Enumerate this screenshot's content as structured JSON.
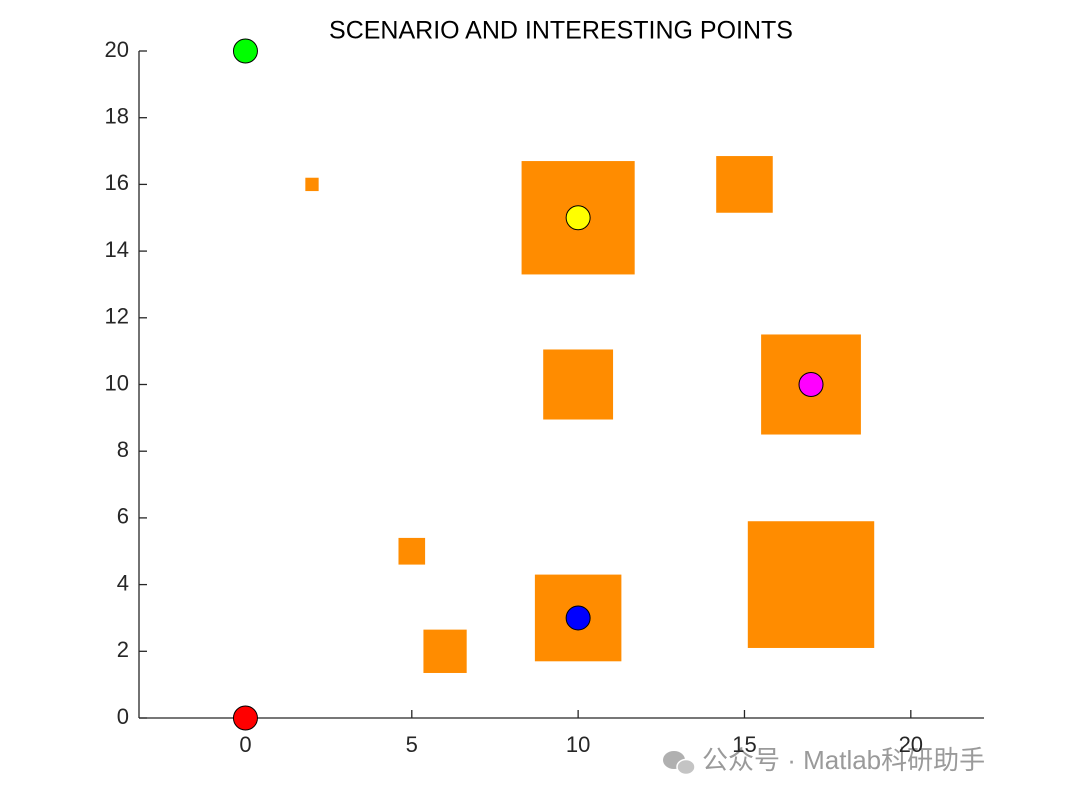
{
  "chart_data": {
    "type": "scatter",
    "title": "SCENARIO AND INTERESTING POINTS",
    "xlim": [
      -3.2,
      22.2
    ],
    "ylim": [
      0,
      20
    ],
    "xticks": [
      0,
      5,
      10,
      15,
      20
    ],
    "yticks": [
      0,
      2,
      4,
      6,
      8,
      10,
      12,
      14,
      16,
      18,
      20
    ],
    "grid": false,
    "obstacles": {
      "color": "#ff8c00",
      "x": [
        2,
        10,
        15,
        10,
        17,
        5,
        6,
        10,
        17
      ],
      "y": [
        16,
        15,
        16,
        10,
        10,
        5,
        2,
        3,
        4
      ],
      "sizes": [
        0.4,
        3.4,
        1.7,
        2.1,
        3.0,
        0.8,
        1.3,
        2.6,
        3.8
      ]
    },
    "points": {
      "x": [
        0,
        0,
        10,
        17,
        10
      ],
      "y": [
        20,
        0,
        15,
        10,
        3
      ],
      "colors": [
        "#00ff00",
        "#ff0000",
        "#ffff00",
        "#ff00ff",
        "#0000ff"
      ]
    }
  },
  "watermark": "公众号 · Matlab科研助手"
}
